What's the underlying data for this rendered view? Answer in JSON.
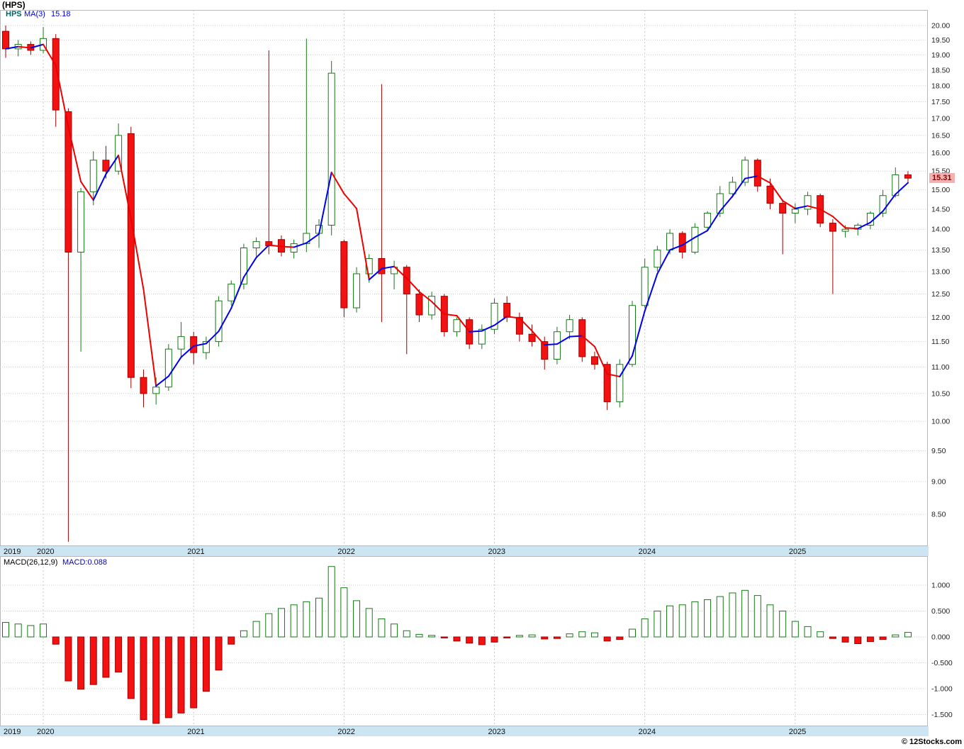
{
  "chart_data": {
    "type": "candlestick",
    "title": "(HPS)",
    "legend": {
      "symbol": "HPS",
      "ma_label": "MA(3)",
      "ma_value": "15.18"
    },
    "price_axis": {
      "max": 20.0,
      "min": 8.5,
      "step": 0.5,
      "scale": "log",
      "last_price": "15.31"
    },
    "x_axis_years": [
      "2019",
      "2020",
      "2021",
      "2022",
      "2023",
      "2024",
      "2025"
    ],
    "columns": [
      "month",
      "open",
      "high",
      "low",
      "close"
    ],
    "months": [
      [
        "2019-10",
        19.8,
        20.0,
        18.9,
        19.2
      ],
      [
        "2019-11",
        19.2,
        19.5,
        18.95,
        19.35
      ],
      [
        "2019-12",
        19.35,
        19.45,
        19.0,
        19.15
      ],
      [
        "2020-01",
        19.15,
        19.95,
        19.05,
        19.55
      ],
      [
        "2020-02",
        19.55,
        19.7,
        16.75,
        17.25
      ],
      [
        "2020-03",
        17.2,
        17.3,
        8.1,
        13.45
      ],
      [
        "2020-04",
        13.45,
        15.05,
        11.3,
        14.95
      ],
      [
        "2020-05",
        14.95,
        16.05,
        14.6,
        15.8
      ],
      [
        "2020-06",
        15.8,
        16.2,
        15.3,
        15.5
      ],
      [
        "2020-07",
        15.5,
        16.85,
        15.4,
        16.5
      ],
      [
        "2020-08",
        16.55,
        16.75,
        10.6,
        10.8
      ],
      [
        "2020-09",
        10.8,
        10.95,
        10.25,
        10.5
      ],
      [
        "2020-10",
        10.5,
        10.8,
        10.3,
        10.62
      ],
      [
        "2020-11",
        10.62,
        11.45,
        10.55,
        11.35
      ],
      [
        "2020-12",
        11.35,
        11.9,
        11.2,
        11.6
      ],
      [
        "2021-01",
        11.6,
        11.7,
        11.05,
        11.28
      ],
      [
        "2021-02",
        11.28,
        11.6,
        11.15,
        11.5
      ],
      [
        "2021-03",
        11.5,
        12.45,
        11.4,
        12.35
      ],
      [
        "2021-04",
        12.35,
        12.8,
        12.25,
        12.72
      ],
      [
        "2021-05",
        12.72,
        13.65,
        12.6,
        13.55
      ],
      [
        "2021-06",
        13.55,
        13.8,
        13.35,
        13.7
      ],
      [
        "2021-07",
        13.7,
        19.15,
        13.4,
        13.6
      ],
      [
        "2021-08",
        13.75,
        13.85,
        13.35,
        13.45
      ],
      [
        "2021-09",
        13.45,
        13.75,
        13.3,
        13.65
      ],
      [
        "2021-10",
        13.65,
        19.55,
        13.45,
        13.9
      ],
      [
        "2021-11",
        13.9,
        14.25,
        13.55,
        14.1
      ],
      [
        "2021-12",
        14.1,
        18.8,
        13.85,
        18.4
      ],
      [
        "2022-01",
        13.7,
        13.75,
        12.0,
        12.2
      ],
      [
        "2022-02",
        12.2,
        13.1,
        12.1,
        12.95
      ],
      [
        "2022-03",
        12.95,
        13.4,
        12.75,
        13.3
      ],
      [
        "2022-04",
        13.3,
        18.05,
        11.9,
        12.95
      ],
      [
        "2022-05",
        12.95,
        13.25,
        12.6,
        13.1
      ],
      [
        "2022-06",
        13.1,
        13.15,
        11.25,
        12.5
      ],
      [
        "2022-07",
        12.5,
        12.6,
        11.9,
        12.05
      ],
      [
        "2022-08",
        12.05,
        12.55,
        11.95,
        12.45
      ],
      [
        "2022-09",
        12.45,
        12.5,
        11.6,
        11.7
      ],
      [
        "2022-10",
        11.7,
        12.0,
        11.6,
        11.95
      ],
      [
        "2022-11",
        11.95,
        12.0,
        11.35,
        11.45
      ],
      [
        "2022-12",
        11.45,
        11.85,
        11.35,
        11.75
      ],
      [
        "2023-01",
        11.75,
        12.4,
        11.65,
        12.3
      ],
      [
        "2023-02",
        12.3,
        12.45,
        11.9,
        12.0
      ],
      [
        "2023-03",
        12.0,
        12.1,
        11.5,
        11.65
      ],
      [
        "2023-04",
        11.65,
        11.85,
        11.4,
        11.5
      ],
      [
        "2023-05",
        11.5,
        11.6,
        10.95,
        11.15
      ],
      [
        "2023-06",
        11.15,
        11.8,
        11.05,
        11.7
      ],
      [
        "2023-07",
        11.7,
        12.05,
        11.55,
        11.95
      ],
      [
        "2023-08",
        11.95,
        12.0,
        11.1,
        11.2
      ],
      [
        "2023-09",
        11.2,
        11.3,
        10.95,
        11.05
      ],
      [
        "2023-10",
        11.05,
        11.1,
        10.2,
        10.35
      ],
      [
        "2023-11",
        10.35,
        11.15,
        10.25,
        11.05
      ],
      [
        "2023-12",
        11.05,
        12.35,
        11.0,
        12.25
      ],
      [
        "2024-01",
        12.25,
        13.3,
        12.2,
        13.1
      ],
      [
        "2024-02",
        13.1,
        13.6,
        13.0,
        13.5
      ],
      [
        "2024-03",
        13.5,
        14.0,
        13.4,
        13.9
      ],
      [
        "2024-04",
        13.9,
        13.95,
        13.3,
        13.45
      ],
      [
        "2024-05",
        13.45,
        14.15,
        13.4,
        14.05
      ],
      [
        "2024-06",
        14.05,
        14.45,
        13.95,
        14.4
      ],
      [
        "2024-07",
        14.4,
        15.1,
        14.3,
        14.9
      ],
      [
        "2024-08",
        14.9,
        15.35,
        14.8,
        15.2
      ],
      [
        "2024-09",
        15.2,
        15.9,
        15.1,
        15.8
      ],
      [
        "2024-10",
        15.8,
        15.85,
        14.95,
        15.1
      ],
      [
        "2024-11",
        15.1,
        15.3,
        14.5,
        14.65
      ],
      [
        "2024-12",
        14.65,
        14.75,
        13.4,
        14.4
      ],
      [
        "2025-01",
        14.4,
        14.65,
        14.15,
        14.5
      ],
      [
        "2025-02",
        14.5,
        14.95,
        14.35,
        14.85
      ],
      [
        "2025-03",
        14.85,
        14.9,
        14.05,
        14.15
      ],
      [
        "2025-04",
        14.15,
        14.25,
        12.5,
        13.95
      ],
      [
        "2025-05",
        13.95,
        14.1,
        13.8,
        14.0
      ],
      [
        "2025-06",
        14.0,
        14.15,
        13.85,
        14.1
      ],
      [
        "2025-07",
        14.1,
        14.45,
        14.0,
        14.4
      ],
      [
        "2025-08",
        14.4,
        15.0,
        14.3,
        14.85
      ],
      [
        "2025-09",
        14.85,
        15.6,
        14.8,
        15.4
      ],
      [
        "2025-10",
        15.4,
        15.5,
        15.2,
        15.31
      ]
    ],
    "ma_period": 3,
    "macd": {
      "label": "MACD(26,12,9)",
      "value_label": "MACD:0.088",
      "axis_ticks": [
        1.0,
        0.5,
        0.0,
        -0.5,
        -1.0,
        -1.5
      ],
      "values": [
        0.28,
        0.25,
        0.22,
        0.25,
        -0.14,
        -0.85,
        -1.01,
        -0.92,
        -0.78,
        -0.68,
        -1.19,
        -1.6,
        -1.67,
        -1.56,
        -1.47,
        -1.37,
        -1.05,
        -0.64,
        -0.14,
        0.12,
        0.3,
        0.45,
        0.55,
        0.62,
        0.68,
        0.75,
        1.36,
        0.95,
        0.7,
        0.55,
        0.35,
        0.25,
        0.12,
        0.05,
        0.03,
        -0.02,
        -0.08,
        -0.12,
        -0.15,
        -0.1,
        -0.02,
        0.03,
        0.04,
        -0.04,
        -0.03,
        0.06,
        0.1,
        0.08,
        -0.08,
        -0.05,
        0.15,
        0.35,
        0.5,
        0.6,
        0.62,
        0.68,
        0.72,
        0.78,
        0.85,
        0.9,
        0.8,
        0.62,
        0.5,
        0.3,
        0.2,
        0.1,
        -0.03,
        -0.1,
        -0.13,
        -0.09,
        -0.05,
        0.04,
        0.088
      ]
    },
    "colors": {
      "up_stroke": "#157a15",
      "up_fill": "#ffffff",
      "down_stroke": "#a00000",
      "down_fill": "#f31111",
      "ma_up": "#0000ee",
      "ma_down": "#ee0000",
      "grid": "#c9c9c9",
      "panel_border": "#b8b8b8",
      "strip_bg": "#cbe5f2",
      "axis_text": "#222222",
      "tag_bg": "#f3b2b2",
      "tag_text": "#8b0000"
    },
    "watermark": "© 12Stocks.com"
  }
}
